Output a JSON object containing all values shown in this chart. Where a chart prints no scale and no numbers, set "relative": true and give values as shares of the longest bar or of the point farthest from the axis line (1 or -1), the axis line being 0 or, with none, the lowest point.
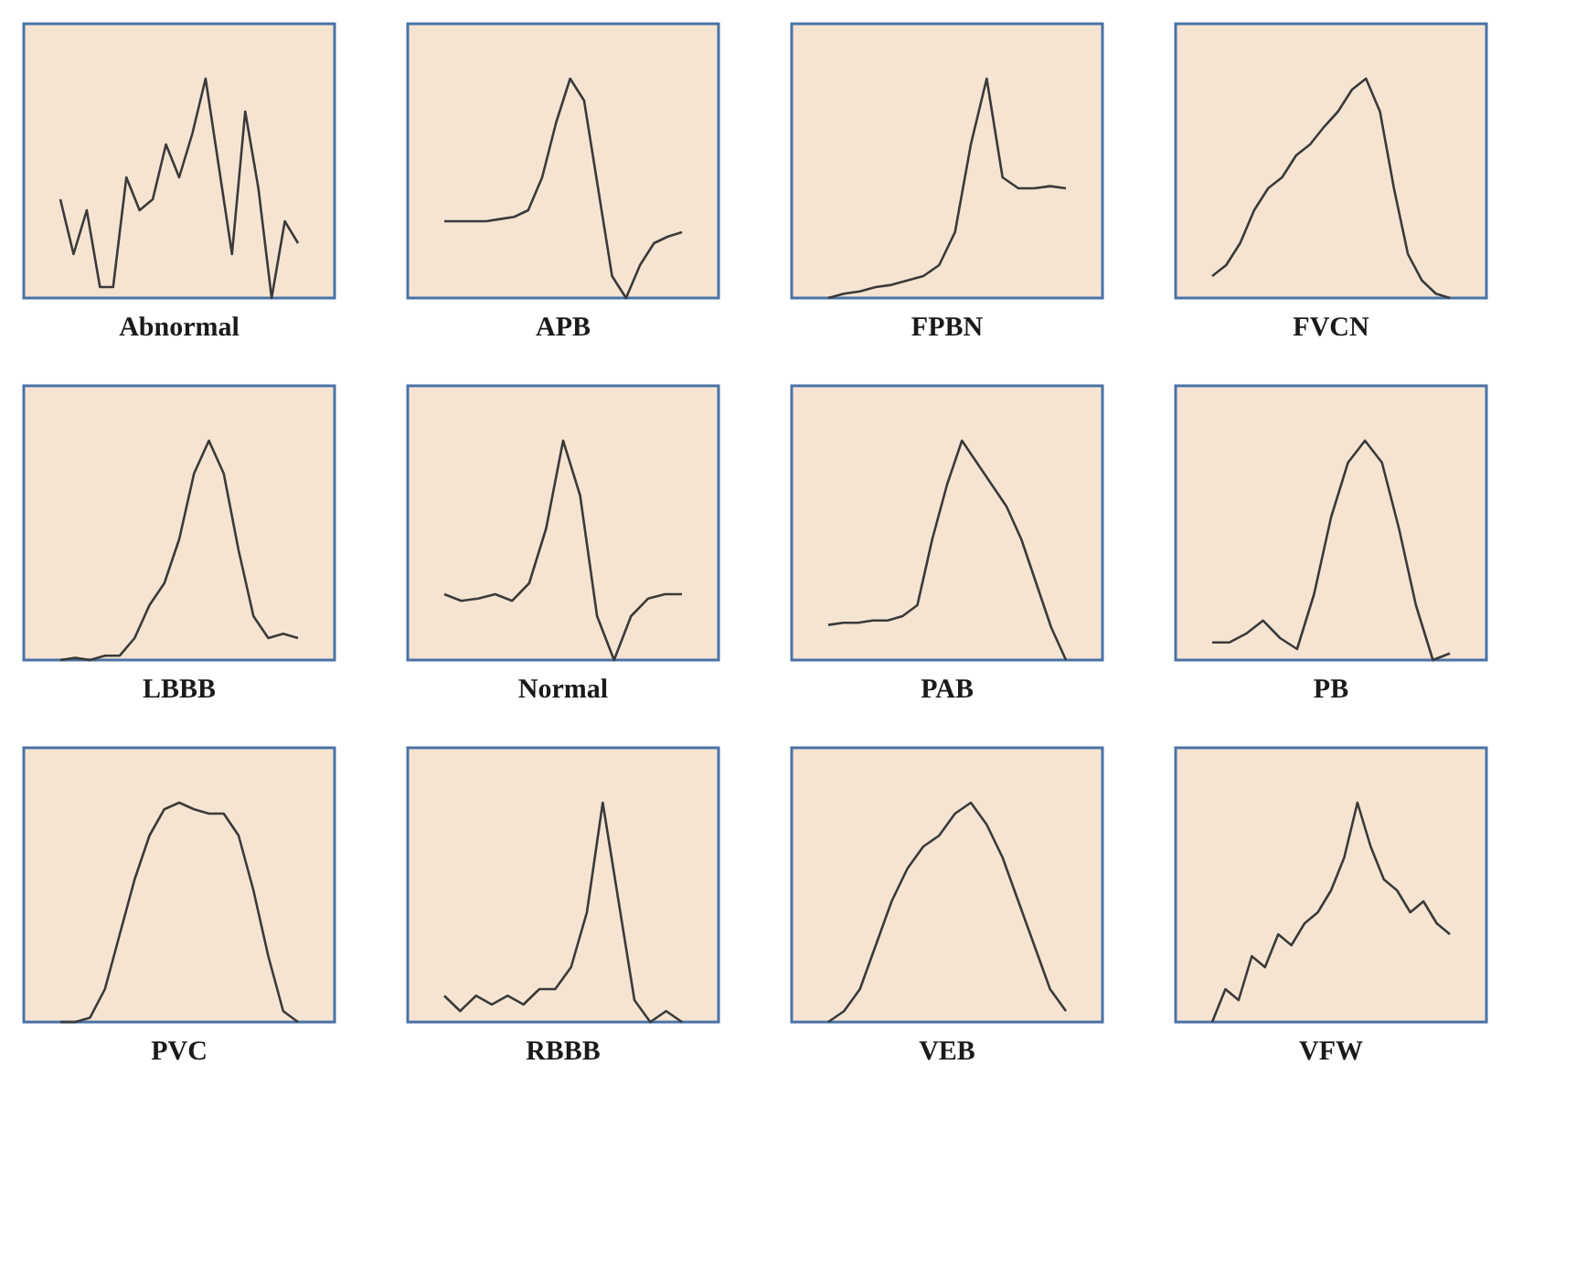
{
  "chart_data": [
    {
      "type": "line",
      "title": "Abnormal",
      "relative": true,
      "categories": [
        null,
        null,
        null,
        null,
        null,
        null,
        null,
        null,
        null,
        null,
        null,
        null,
        null,
        null,
        null,
        null,
        null,
        null,
        null
      ],
      "series": [
        {
          "color": "#3a3a3a",
          "values": [
            0.45,
            0.2,
            0.4,
            0.05,
            0.05,
            0.55,
            0.4,
            0.45,
            0.7,
            0.55,
            0.75,
            1.0,
            0.6,
            0.2,
            0.85,
            0.5,
            0.0,
            0.35,
            0.25
          ]
        }
      ]
    },
    {
      "type": "line",
      "title": "APB",
      "relative": true,
      "categories": [
        null,
        null,
        null,
        null,
        null,
        null,
        null,
        null,
        null,
        null,
        null,
        null,
        null,
        null,
        null,
        null,
        null,
        null
      ],
      "series": [
        {
          "color": "#3a3a3a",
          "values": [
            0.35,
            0.35,
            0.35,
            0.35,
            0.36,
            0.37,
            0.4,
            0.55,
            0.8,
            1.0,
            0.9,
            0.5,
            0.1,
            0.0,
            0.15,
            0.25,
            0.28,
            0.3
          ]
        }
      ]
    },
    {
      "type": "line",
      "title": "FPBN",
      "relative": true,
      "categories": [
        null,
        null,
        null,
        null,
        null,
        null,
        null,
        null,
        null,
        null,
        null,
        null,
        null,
        null,
        null,
        null
      ],
      "series": [
        {
          "color": "#3a3a3a",
          "values": [
            0.0,
            0.02,
            0.03,
            0.05,
            0.06,
            0.08,
            0.1,
            0.15,
            0.3,
            0.7,
            1.0,
            0.55,
            0.5,
            0.5,
            0.51,
            0.5
          ]
        }
      ]
    },
    {
      "type": "line",
      "title": "FVCN",
      "relative": true,
      "categories": [
        null,
        null,
        null,
        null,
        null,
        null,
        null,
        null,
        null,
        null,
        null,
        null,
        null,
        null,
        null,
        null,
        null,
        null
      ],
      "series": [
        {
          "color": "#3a3a3a",
          "values": [
            0.1,
            0.15,
            0.25,
            0.4,
            0.5,
            0.55,
            0.65,
            0.7,
            0.78,
            0.85,
            0.95,
            1.0,
            0.85,
            0.5,
            0.2,
            0.08,
            0.02,
            0.0
          ]
        }
      ]
    },
    {
      "type": "line",
      "title": "LBBB",
      "relative": true,
      "categories": [
        null,
        null,
        null,
        null,
        null,
        null,
        null,
        null,
        null,
        null,
        null,
        null,
        null,
        null,
        null,
        null,
        null
      ],
      "series": [
        {
          "color": "#3a3a3a",
          "values": [
            0.0,
            0.01,
            0.0,
            0.02,
            0.02,
            0.1,
            0.25,
            0.35,
            0.55,
            0.85,
            1.0,
            0.85,
            0.5,
            0.2,
            0.1,
            0.12,
            0.1
          ]
        }
      ]
    },
    {
      "type": "line",
      "title": "Normal",
      "relative": true,
      "categories": [
        null,
        null,
        null,
        null,
        null,
        null,
        null,
        null,
        null,
        null,
        null,
        null,
        null,
        null,
        null
      ],
      "series": [
        {
          "color": "#3a3a3a",
          "values": [
            0.3,
            0.27,
            0.28,
            0.3,
            0.27,
            0.35,
            0.6,
            1.0,
            0.75,
            0.2,
            0.0,
            0.2,
            0.28,
            0.3,
            0.3
          ]
        }
      ]
    },
    {
      "type": "line",
      "title": "PAB",
      "relative": true,
      "categories": [
        null,
        null,
        null,
        null,
        null,
        null,
        null,
        null,
        null,
        null,
        null,
        null,
        null,
        null,
        null,
        null,
        null
      ],
      "series": [
        {
          "color": "#3a3a3a",
          "values": [
            0.16,
            0.17,
            0.17,
            0.18,
            0.18,
            0.2,
            0.25,
            0.55,
            0.8,
            1.0,
            0.9,
            0.8,
            0.7,
            0.55,
            0.35,
            0.15,
            0.0
          ]
        }
      ]
    },
    {
      "type": "line",
      "title": "PB",
      "relative": true,
      "categories": [
        null,
        null,
        null,
        null,
        null,
        null,
        null,
        null,
        null,
        null,
        null,
        null,
        null,
        null,
        null
      ],
      "series": [
        {
          "color": "#3a3a3a",
          "values": [
            0.08,
            0.08,
            0.12,
            0.18,
            0.1,
            0.05,
            0.3,
            0.65,
            0.9,
            1.0,
            0.9,
            0.6,
            0.25,
            0.0,
            0.03
          ]
        }
      ]
    },
    {
      "type": "line",
      "title": "PVC",
      "relative": true,
      "categories": [
        null,
        null,
        null,
        null,
        null,
        null,
        null,
        null,
        null,
        null,
        null,
        null,
        null,
        null,
        null,
        null,
        null
      ],
      "series": [
        {
          "color": "#3a3a3a",
          "values": [
            0.0,
            0.0,
            0.02,
            0.15,
            0.4,
            0.65,
            0.85,
            0.97,
            1.0,
            0.97,
            0.95,
            0.95,
            0.85,
            0.6,
            0.3,
            0.05,
            0.0
          ]
        }
      ]
    },
    {
      "type": "line",
      "title": "RBBB",
      "relative": true,
      "categories": [
        null,
        null,
        null,
        null,
        null,
        null,
        null,
        null,
        null,
        null,
        null,
        null,
        null,
        null,
        null,
        null
      ],
      "series": [
        {
          "color": "#3a3a3a",
          "values": [
            0.12,
            0.05,
            0.12,
            0.08,
            0.12,
            0.08,
            0.15,
            0.15,
            0.25,
            0.5,
            1.0,
            0.55,
            0.1,
            0.0,
            0.05,
            0.0
          ]
        }
      ]
    },
    {
      "type": "line",
      "title": "VEB",
      "relative": true,
      "categories": [
        null,
        null,
        null,
        null,
        null,
        null,
        null,
        null,
        null,
        null,
        null,
        null,
        null,
        null,
        null,
        null
      ],
      "series": [
        {
          "color": "#3a3a3a",
          "values": [
            0.0,
            0.05,
            0.15,
            0.35,
            0.55,
            0.7,
            0.8,
            0.85,
            0.95,
            1.0,
            0.9,
            0.75,
            0.55,
            0.35,
            0.15,
            0.05
          ]
        }
      ]
    },
    {
      "type": "line",
      "title": "VFW",
      "relative": true,
      "categories": [
        null,
        null,
        null,
        null,
        null,
        null,
        null,
        null,
        null,
        null,
        null,
        null,
        null,
        null,
        null,
        null,
        null,
        null,
        null
      ],
      "series": [
        {
          "color": "#3a3a3a",
          "values": [
            0.0,
            0.15,
            0.1,
            0.3,
            0.25,
            0.4,
            0.35,
            0.45,
            0.5,
            0.6,
            0.75,
            1.0,
            0.8,
            0.65,
            0.6,
            0.5,
            0.55,
            0.45,
            0.4
          ]
        }
      ]
    }
  ]
}
